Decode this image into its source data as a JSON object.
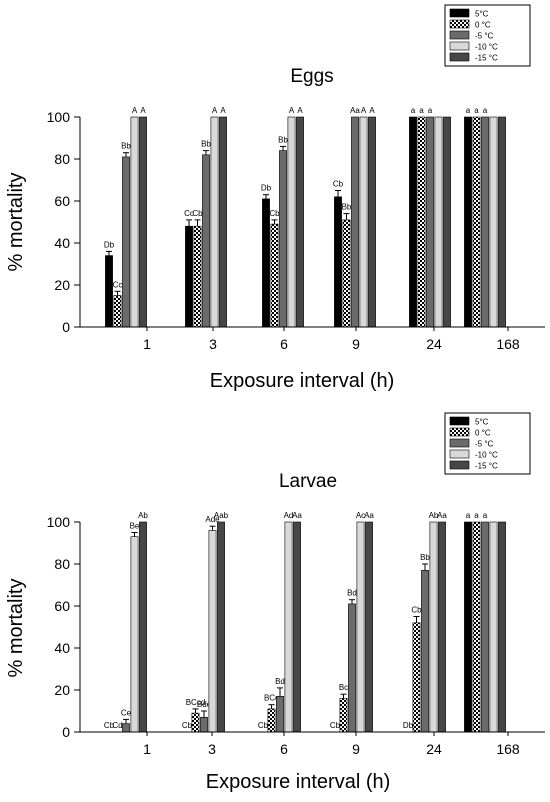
{
  "chart_data": [
    {
      "type": "bar",
      "title": "Eggs",
      "xlabel": "Exposure interval (h)",
      "ylabel": "% mortality",
      "ylim": [
        0,
        100
      ],
      "yticks": [
        0,
        20,
        40,
        60,
        80,
        100
      ],
      "categories": [
        "1",
        "3",
        "6",
        "9",
        "24",
        "168"
      ],
      "legend_position": "top-right",
      "series": [
        {
          "name": "5°C",
          "pattern": "solid-black",
          "values": [
            34,
            48,
            61,
            62,
            100,
            100
          ],
          "errors": [
            2,
            3,
            2,
            3,
            0,
            0
          ],
          "labels": [
            "Db",
            "Cc",
            "Db",
            "Cb",
            "a",
            "a"
          ]
        },
        {
          "name": "0 °C",
          "pattern": "checker",
          "values": [
            15,
            48,
            49,
            51,
            100,
            100
          ],
          "errors": [
            2,
            3,
            2,
            3,
            0,
            0
          ],
          "labels": [
            "Cc",
            "Cb",
            "Cb",
            "Bb",
            "a",
            "a"
          ]
        },
        {
          "name": "-5 °C",
          "pattern": "dark-gray",
          "values": [
            81,
            82,
            84,
            100,
            100,
            100
          ],
          "errors": [
            2,
            2,
            2,
            0,
            0,
            0
          ],
          "labels": [
            "Bb",
            "Bb",
            "Bb",
            "Aa",
            "a",
            "a"
          ]
        },
        {
          "name": "-10 °C",
          "pattern": "light-gray",
          "values": [
            100,
            100,
            100,
            100,
            100,
            100
          ],
          "errors": [
            0,
            0,
            0,
            0,
            0,
            0
          ],
          "labels": [
            "A",
            "A",
            "A",
            "A",
            "",
            ""
          ]
        },
        {
          "name": "-15 °C",
          "pattern": "charcoal",
          "values": [
            100,
            100,
            100,
            100,
            100,
            100
          ],
          "errors": [
            0,
            0,
            0,
            0,
            0,
            0
          ],
          "labels": [
            "A",
            "A",
            "A",
            "A",
            "",
            ""
          ]
        }
      ]
    },
    {
      "type": "bar",
      "title": "Larvae",
      "xlabel": "Exposure interval (h)",
      "ylabel": "% mortality",
      "ylim": [
        0,
        100
      ],
      "yticks": [
        0,
        20,
        40,
        60,
        80,
        100
      ],
      "categories": [
        "1",
        "3",
        "6",
        "9",
        "24",
        "168"
      ],
      "legend_position": "top-right",
      "series": [
        {
          "name": "5°C",
          "pattern": "solid-black",
          "values": [
            0,
            0,
            0,
            0,
            0,
            100
          ],
          "errors": [
            0,
            0,
            0,
            0,
            0,
            0
          ],
          "labels": [
            "Cb",
            "Cb",
            "Cb",
            "Cb",
            "Db",
            "a"
          ]
        },
        {
          "name": "0 °C",
          "pattern": "checker",
          "values": [
            0,
            9,
            11,
            16,
            52,
            100
          ],
          "errors": [
            0,
            2,
            2,
            2,
            3,
            0
          ],
          "labels": [
            "Cd",
            "BCcd",
            "BCc",
            "Bc",
            "Cb",
            "a"
          ]
        },
        {
          "name": "-5 °C",
          "pattern": "dark-gray",
          "values": [
            4,
            7,
            17,
            61,
            77,
            100
          ],
          "errors": [
            2,
            3,
            4,
            2,
            3,
            0
          ],
          "labels": [
            "Ce",
            "Bde",
            "Bd",
            "Bd",
            "Bb",
            "a"
          ]
        },
        {
          "name": "-10 °C",
          "pattern": "light-gray",
          "values": [
            93,
            96,
            100,
            100,
            100,
            100
          ],
          "errors": [
            2,
            2,
            0,
            0,
            0,
            0
          ],
          "labels": [
            "Be",
            "Ade",
            "Ad",
            "Ac",
            "Ab",
            ""
          ]
        },
        {
          "name": "-15 °C",
          "pattern": "charcoal",
          "values": [
            100,
            100,
            100,
            100,
            100,
            100
          ],
          "errors": [
            0,
            0,
            0,
            0,
            0,
            0
          ],
          "labels": [
            "Ab",
            "Aab",
            "Aa",
            "Aa",
            "Aa",
            ""
          ]
        }
      ]
    }
  ],
  "colors": {
    "solid-black": "#000000",
    "dark-gray": "#6b6b6b",
    "light-gray": "#d9d9d9",
    "charcoal": "#474747"
  }
}
